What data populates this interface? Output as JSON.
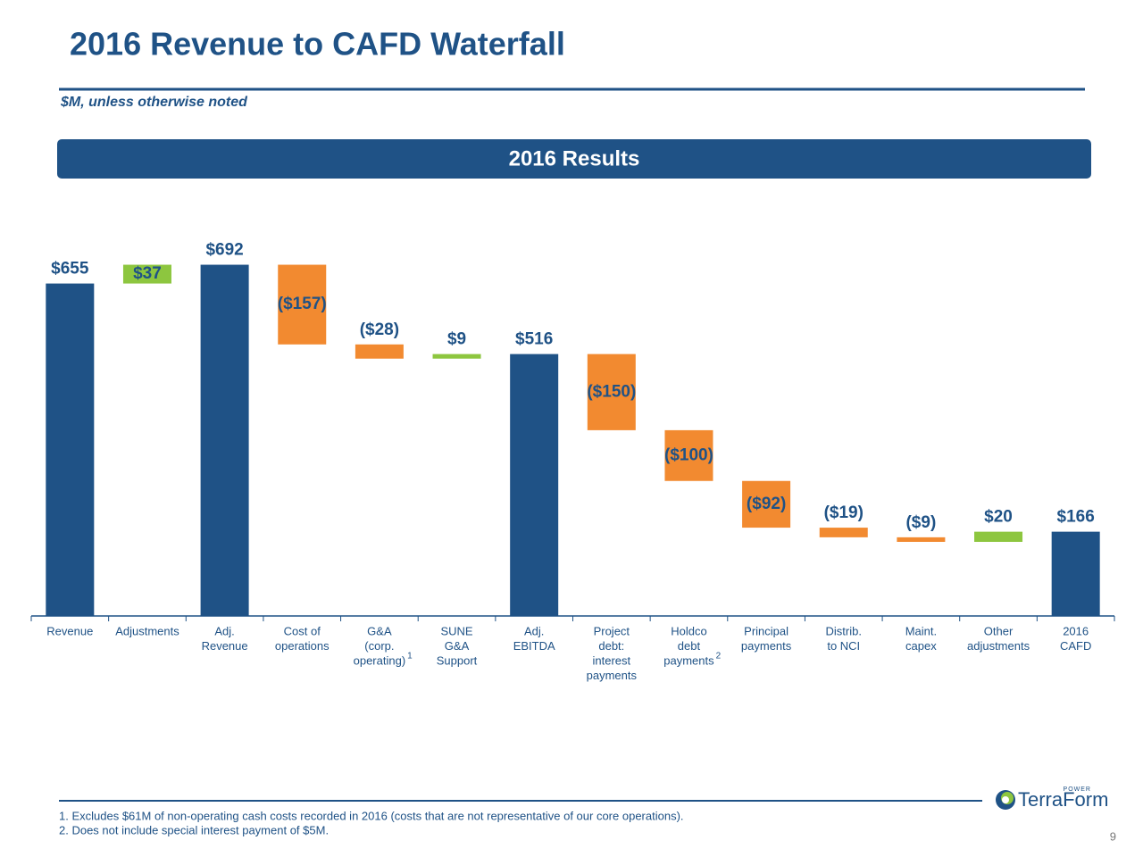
{
  "header": {
    "banner": "2016 Results",
    "logo": "TerraForm",
    "logo_tag": "POWER",
    "page_number": "9"
  },
  "footnotes": [
    "1. Excludes $61M of non-operating cash costs recorded in 2016 (costs that are not representative of our core operations).",
    "2. Does not include special interest payment of $5M."
  ],
  "chart_data": {
    "type": "waterfall",
    "title": "2016 Revenue to CAFD Waterfall",
    "subtitle": "$M, unless otherwise noted",
    "categories": [
      [
        "Revenue"
      ],
      [
        "Adjustments"
      ],
      [
        "Adj.",
        "Revenue"
      ],
      [
        "Cost of",
        "operations"
      ],
      [
        "G&A",
        "(corp.",
        "operating)"
      ],
      [
        "SUNE",
        "G&A",
        "Support"
      ],
      [
        "Adj.",
        "EBITDA"
      ],
      [
        "Project",
        "debt:",
        "interest",
        "payments"
      ],
      [
        "Holdco",
        "debt",
        "payments"
      ],
      [
        "Principal",
        "payments"
      ],
      [
        "Distrib.",
        "to NCI"
      ],
      [
        "Maint.",
        "capex"
      ],
      [
        "Other",
        "adjustments"
      ],
      [
        "2016",
        "CAFD"
      ]
    ],
    "category_notes": [
      null,
      null,
      null,
      null,
      "1",
      null,
      null,
      null,
      "2",
      null,
      null,
      null,
      null,
      null
    ],
    "values": [
      655,
      37,
      692,
      -157,
      -28,
      9,
      516,
      -150,
      -100,
      -92,
      -19,
      -9,
      20,
      166
    ],
    "value_labels": [
      "$655",
      "$37",
      "$692",
      "($157)",
      "($28)",
      "$9",
      "$516",
      "($150)",
      "($100)",
      "($92)",
      "($19)",
      "($9)",
      "$20",
      "$166"
    ],
    "measures": [
      "total",
      "relative",
      "total",
      "relative",
      "relative",
      "relative",
      "total",
      "relative",
      "relative",
      "relative",
      "relative",
      "relative",
      "relative",
      "total"
    ],
    "colors": {
      "total": "#1f5286",
      "increase": "#8dc63f",
      "decrease": "#f28a30"
    },
    "ylim": [
      0,
      700
    ]
  }
}
